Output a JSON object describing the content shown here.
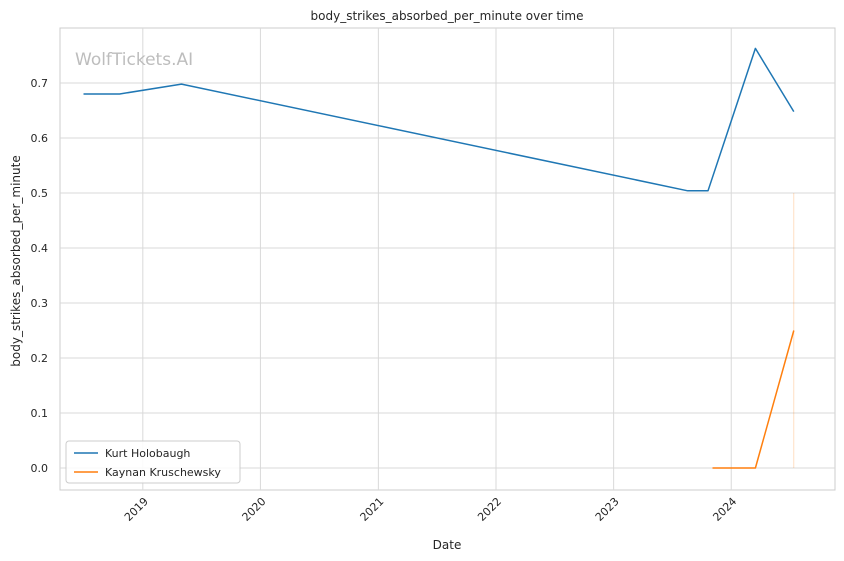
{
  "chart_data": {
    "type": "line",
    "title": "body_strikes_absorbed_per_minute over time",
    "xlabel": "Date",
    "ylabel": "body_strikes_absorbed_per_minute",
    "watermark": "WolfTickets.AI",
    "x_ticks": [
      "2019",
      "2020",
      "2021",
      "2022",
      "2023",
      "2024"
    ],
    "y_ticks": [
      "0.0",
      "0.1",
      "0.2",
      "0.3",
      "0.4",
      "0.5",
      "0.6",
      "0.7"
    ],
    "xlim": [
      "2018-04-19",
      "2024-11-18"
    ],
    "ylim": [
      -0.04,
      0.8
    ],
    "grid": true,
    "legend_position": "lower-left",
    "series": [
      {
        "name": "Kurt Holobaugh",
        "color": "#1f77b4",
        "points": [
          {
            "x": "2018-07-01",
            "y": 0.68
          },
          {
            "x": "2018-10-21",
            "y": 0.68
          },
          {
            "x": "2019-05-01",
            "y": 0.698
          },
          {
            "x": "2023-08-19",
            "y": 0.504
          },
          {
            "x": "2023-10-21",
            "y": 0.504
          },
          {
            "x": "2024-03-16",
            "y": 0.763
          },
          {
            "x": "2024-07-13",
            "y": 0.648
          }
        ]
      },
      {
        "name": "Kaynan Kruschewsky",
        "color": "#ff7f0e",
        "points": [
          {
            "x": "2023-11-04",
            "y": 0.0
          },
          {
            "x": "2024-03-16",
            "y": 0.0
          },
          {
            "x": "2024-07-13",
            "y": 0.25
          }
        ],
        "band": {
          "x": "2024-07-13",
          "y_low": 0.0,
          "y_high": 0.5
        }
      }
    ]
  }
}
